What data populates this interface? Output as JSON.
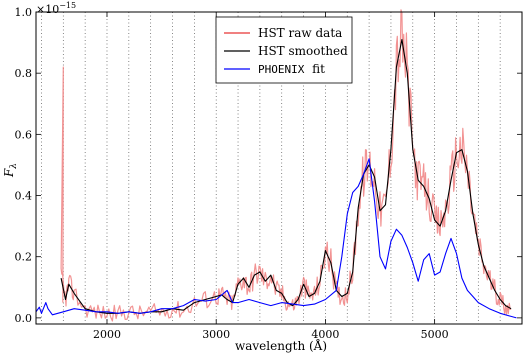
{
  "chart_data": {
    "type": "line",
    "xlabel": "wavelength (Å)",
    "ylabel": "F_λ",
    "ylabel_main": "F",
    "ylabel_sub": "λ",
    "offset_label": "×10",
    "offset_exponent": "−15",
    "xlim": [
      1350,
      5800
    ],
    "ylim": [
      -0.02,
      1.0
    ],
    "x_ticks": [
      2000,
      3000,
      4000,
      5000
    ],
    "y_ticks": [
      0.0,
      0.2,
      0.4,
      0.6,
      0.8,
      1.0
    ],
    "x_tick_labels": [
      "2000",
      "3000",
      "4000",
      "5000"
    ],
    "y_tick_labels": [
      "0.0",
      "0.2",
      "0.4",
      "0.6",
      "0.8",
      "1.0"
    ],
    "grid": "vertical dotted lines",
    "gridlines_x": [
      1400,
      1600,
      1800,
      2000,
      2200,
      2400,
      2600,
      2800,
      3000,
      3200,
      3400,
      3600,
      3800,
      4000,
      4200,
      4400,
      4600,
      4800,
      5000,
      5200,
      5400,
      5600
    ],
    "legend_position": "top-center",
    "series": [
      {
        "name": "HST raw data",
        "color": "#f08080",
        "kind": "noisy",
        "x": [
          1580,
          1620,
          1650,
          1700,
          1800,
          1900,
          2000,
          2100,
          2200,
          2300,
          2400,
          2500,
          2600,
          2700,
          2800,
          2900,
          3000,
          3050,
          3100,
          3150,
          3200,
          3250,
          3300,
          3350,
          3400,
          3450,
          3500,
          3550,
          3600,
          3650,
          3700,
          3750,
          3800,
          3850,
          3900,
          3950,
          4000,
          4050,
          4100,
          4150,
          4200,
          4250,
          4300,
          4350,
          4400,
          4450,
          4500,
          4550,
          4600,
          4650,
          4700,
          4750,
          4800,
          4850,
          4900,
          4950,
          5000,
          5050,
          5100,
          5150,
          5200,
          5250,
          5300,
          5350,
          5400,
          5450,
          5500,
          5550,
          5600,
          5650,
          5700
        ],
        "y": [
          0.13,
          0.06,
          0.11,
          0.08,
          0.03,
          0.02,
          0.015,
          0.015,
          0.02,
          0.015,
          0.02,
          0.02,
          0.03,
          0.025,
          0.05,
          0.06,
          0.07,
          0.075,
          0.06,
          0.05,
          0.11,
          0.13,
          0.1,
          0.14,
          0.15,
          0.12,
          0.14,
          0.09,
          0.08,
          0.05,
          0.04,
          0.06,
          0.11,
          0.07,
          0.08,
          0.12,
          0.22,
          0.18,
          0.09,
          0.07,
          0.08,
          0.15,
          0.36,
          0.47,
          0.5,
          0.46,
          0.35,
          0.37,
          0.55,
          0.82,
          0.91,
          0.8,
          0.55,
          0.45,
          0.43,
          0.39,
          0.32,
          0.3,
          0.35,
          0.45,
          0.54,
          0.55,
          0.48,
          0.34,
          0.24,
          0.17,
          0.13,
          0.09,
          0.06,
          0.04,
          0.03
        ]
      },
      {
        "name": "HST smoothed",
        "color": "#000000",
        "x": [
          1580,
          1620,
          1650,
          1700,
          1800,
          1900,
          2000,
          2100,
          2200,
          2300,
          2400,
          2500,
          2600,
          2700,
          2800,
          2900,
          3000,
          3050,
          3100,
          3150,
          3200,
          3250,
          3300,
          3350,
          3400,
          3450,
          3500,
          3550,
          3600,
          3650,
          3700,
          3750,
          3800,
          3850,
          3900,
          3950,
          4000,
          4050,
          4100,
          4150,
          4200,
          4250,
          4300,
          4350,
          4400,
          4450,
          4500,
          4550,
          4600,
          4650,
          4700,
          4750,
          4800,
          4850,
          4900,
          4950,
          5000,
          5050,
          5100,
          5150,
          5200,
          5250,
          5300,
          5350,
          5400,
          5450,
          5500,
          5550,
          5600,
          5650,
          5700
        ],
        "y": [
          0.13,
          0.06,
          0.11,
          0.08,
          0.03,
          0.02,
          0.015,
          0.015,
          0.02,
          0.015,
          0.02,
          0.02,
          0.03,
          0.025,
          0.05,
          0.06,
          0.07,
          0.075,
          0.06,
          0.05,
          0.11,
          0.13,
          0.1,
          0.14,
          0.15,
          0.12,
          0.14,
          0.09,
          0.08,
          0.05,
          0.04,
          0.06,
          0.11,
          0.07,
          0.08,
          0.12,
          0.22,
          0.18,
          0.09,
          0.07,
          0.08,
          0.15,
          0.36,
          0.47,
          0.5,
          0.46,
          0.35,
          0.37,
          0.55,
          0.82,
          0.91,
          0.8,
          0.55,
          0.45,
          0.43,
          0.39,
          0.32,
          0.3,
          0.35,
          0.45,
          0.54,
          0.55,
          0.48,
          0.34,
          0.24,
          0.17,
          0.13,
          0.09,
          0.06,
          0.04,
          0.03
        ]
      },
      {
        "name": "PHOENIX fit",
        "color": "#0000ff",
        "x": [
          1350,
          1380,
          1400,
          1440,
          1460,
          1500,
          1600,
          1700,
          1800,
          1900,
          2000,
          2100,
          2200,
          2300,
          2400,
          2500,
          2600,
          2700,
          2800,
          2900,
          3000,
          3100,
          3150,
          3200,
          3300,
          3400,
          3500,
          3600,
          3700,
          3800,
          3900,
          4000,
          4100,
          4150,
          4200,
          4250,
          4300,
          4350,
          4400,
          4450,
          4500,
          4550,
          4600,
          4650,
          4700,
          4750,
          4800,
          4850,
          4900,
          4950,
          5000,
          5050,
          5100,
          5150,
          5200,
          5250,
          5300,
          5350,
          5400,
          5500,
          5600,
          5700,
          5750
        ],
        "y": [
          0.02,
          0.035,
          0.015,
          0.05,
          0.03,
          0.01,
          0.02,
          0.03,
          0.025,
          0.02,
          0.02,
          0.015,
          0.02,
          0.015,
          0.02,
          0.03,
          0.03,
          0.04,
          0.06,
          0.055,
          0.06,
          0.09,
          0.05,
          0.05,
          0.06,
          0.05,
          0.04,
          0.05,
          0.045,
          0.04,
          0.045,
          0.06,
          0.09,
          0.2,
          0.34,
          0.41,
          0.43,
          0.47,
          0.52,
          0.38,
          0.2,
          0.16,
          0.25,
          0.29,
          0.27,
          0.23,
          0.18,
          0.12,
          0.19,
          0.21,
          0.14,
          0.15,
          0.21,
          0.26,
          0.21,
          0.13,
          0.09,
          0.07,
          0.05,
          0.03,
          0.015,
          0.005,
          0.0
        ]
      }
    ]
  }
}
